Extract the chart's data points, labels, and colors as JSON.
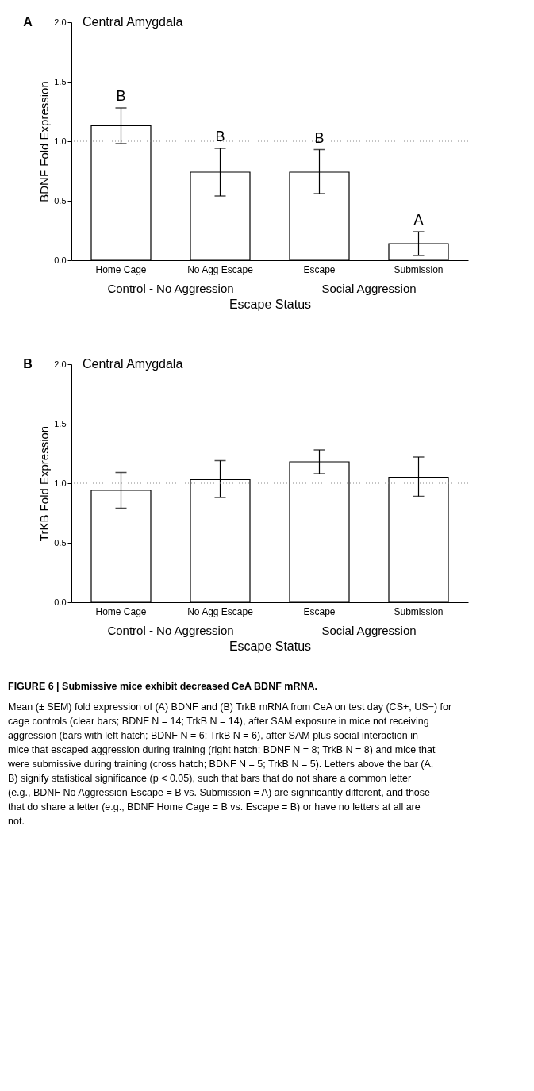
{
  "chart_data": [
    {
      "type": "bar",
      "title": "Central Amygdala",
      "xlabel": "Escape Status",
      "ylabel": "BDNF Fold Expression",
      "categories": [
        "Home Cage",
        "No Agg Escape",
        "Escape",
        "Submission"
      ],
      "values": [
        1.13,
        0.74,
        0.74,
        0.14
      ],
      "errors": [
        [
          0.98,
          1.28
        ],
        [
          0.54,
          0.94
        ],
        [
          0.56,
          0.93
        ],
        [
          0.04,
          0.24
        ]
      ],
      "colors": [
        "#ffffff",
        "#ffffff",
        "#ffffff",
        "#ffffff"
      ],
      "ylim": [
        0,
        2
      ],
      "yticks": [
        {
          "value": 0,
          "label": "0.0"
        },
        {
          "value": 0.5,
          "label": "0.5"
        },
        {
          "value": 1,
          "label": "1.0"
        },
        {
          "value": 1.5,
          "label": "1.5"
        },
        {
          "value": 2,
          "label": "2.0"
        }
      ],
      "grid": false,
      "ref_lines": [
        {
          "axis": "y",
          "value": 1,
          "line_style": "dotted",
          "color": "#888888"
        }
      ],
      "annotations": [
        "A",
        "Control - No Aggression",
        "Social Aggression",
        {
          "text": "B",
          "x": "Home Cage",
          "y": 1.28
        },
        {
          "text": "B",
          "x": "No Agg Escape",
          "y": 0.94
        },
        {
          "text": "B",
          "x": "Escape",
          "y": 0.93
        },
        {
          "text": "A",
          "x": "Submission",
          "y": 0.24
        }
      ]
    },
    {
      "type": "bar",
      "title": "Central Amygdala",
      "xlabel": "Escape Status",
      "ylabel": "TrKB Fold Expression",
      "categories": [
        "Home Cage",
        "No Agg Escape",
        "Escape",
        "Submission"
      ],
      "values": [
        0.94,
        1.03,
        1.18,
        1.05
      ],
      "errors": [
        [
          0.79,
          1.09
        ],
        [
          0.88,
          1.19
        ],
        [
          1.08,
          1.28
        ],
        [
          0.89,
          1.22
        ]
      ],
      "colors": [
        "#ffffff",
        "#ffffff",
        "#ffffff",
        "#ffffff"
      ],
      "ylim": [
        0,
        2
      ],
      "yticks": [
        {
          "value": 0,
          "label": "0.0"
        },
        {
          "value": 0.5,
          "label": "0.5"
        },
        {
          "value": 1,
          "label": "1.0"
        },
        {
          "value": 1.5,
          "label": "1.5"
        },
        {
          "value": 2,
          "label": "2.0"
        }
      ],
      "grid": false,
      "ref_lines": [
        {
          "axis": "y",
          "value": 1,
          "line_style": "dotted",
          "color": "#888888"
        }
      ],
      "annotations": [
        "B",
        "Control - No Aggression",
        "Social Aggression",
        "FIGURE 6 | Submissive mice exhibit decreased CeA BDNF mRNA.",
        "Mean (± SEM) fold expression of (A) BDNF and (B) TrkB mRNA from CeA on test day (CS+, US−) for cage controls (clear bars; BDNF N = 14; TrkB N = 14), after SAM exposure in mice not receiving aggression (bars with left hatch; BDNF N = 6; TrkB N = 6), after SAM plus social interaction in mice that escaped aggression during training (right hatch; BDNF N = 8; TrkB N = 8) and mice that were submissive during training (cross hatch; BDNF N = 5; TrkB N = 5). Letters above the bar (A, B) signify statistical significance (p < 0.05), such that bars that do not share a common letter (e.g., BDNF No Aggression Escape = B vs. Submission = A) are significantly different, and those that do share a letter (e.g., BDNF Home Cage = B vs. Escape = B) or have no letters at all are not."
      ]
    }
  ]
}
